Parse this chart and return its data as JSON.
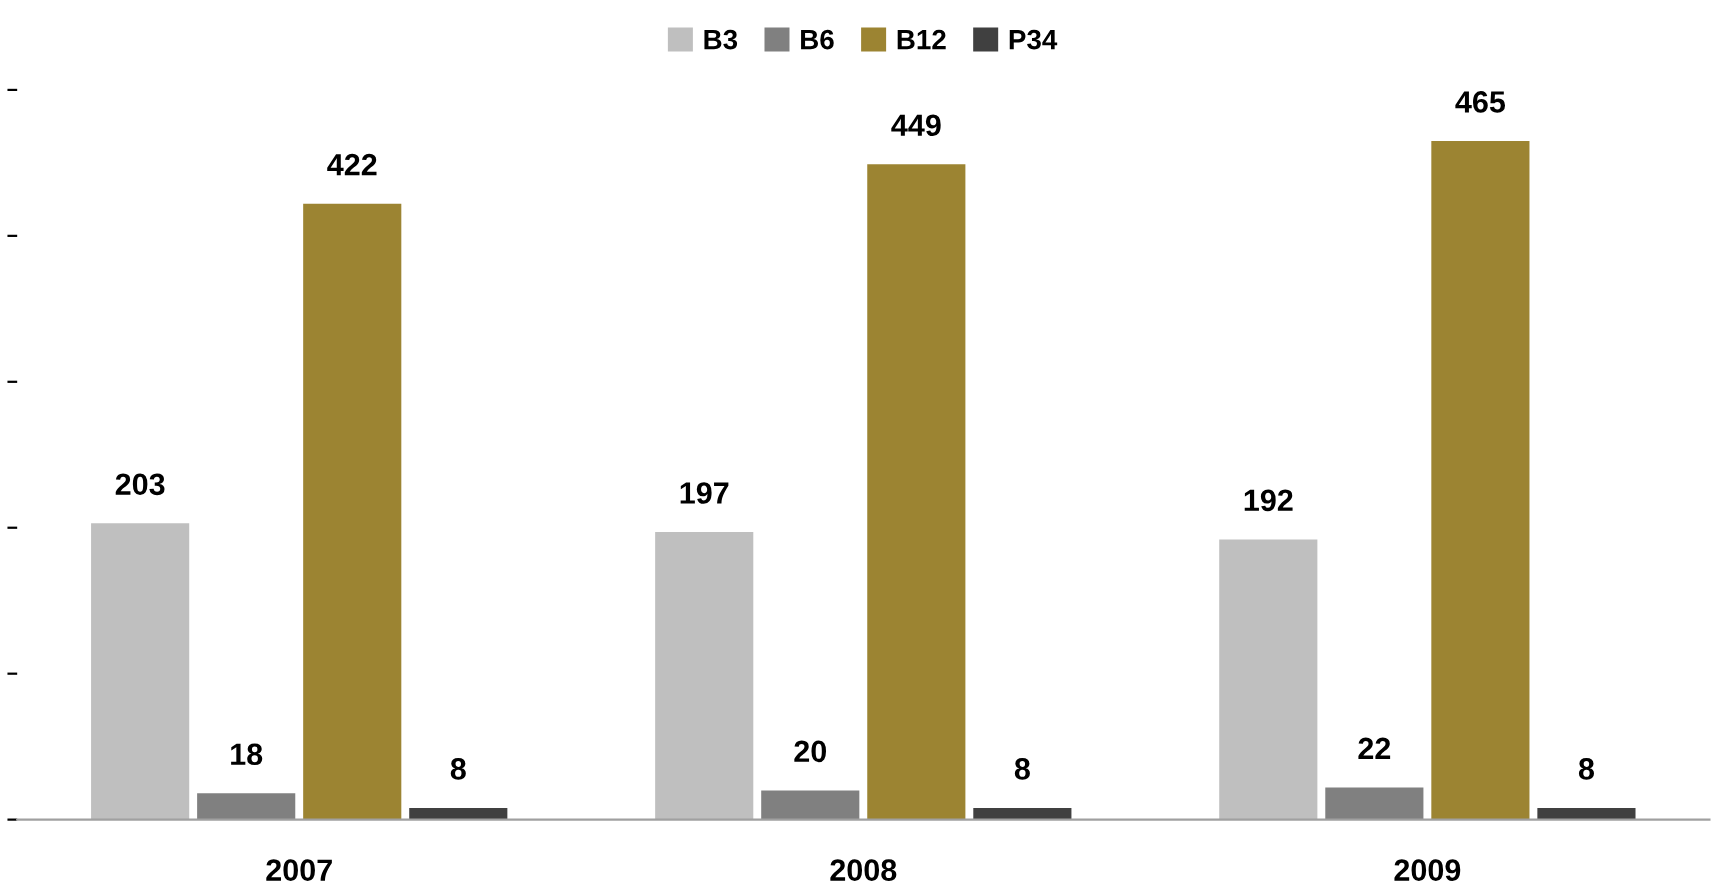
{
  "chart_data": {
    "type": "bar",
    "categories": [
      "2007",
      "2008",
      "2009"
    ],
    "series": [
      {
        "name": "B3",
        "color": "#bfbfbf",
        "values": [
          203,
          197,
          192
        ]
      },
      {
        "name": "B6",
        "color": "#808080",
        "values": [
          18,
          20,
          22
        ]
      },
      {
        "name": "B12",
        "color": "#9c8432",
        "values": [
          422,
          449,
          465
        ]
      },
      {
        "name": "P34",
        "color": "#404040",
        "values": [
          8,
          8,
          8
        ]
      }
    ],
    "relative": false,
    "data_labels": true,
    "legend": "top",
    "grid": false
  }
}
